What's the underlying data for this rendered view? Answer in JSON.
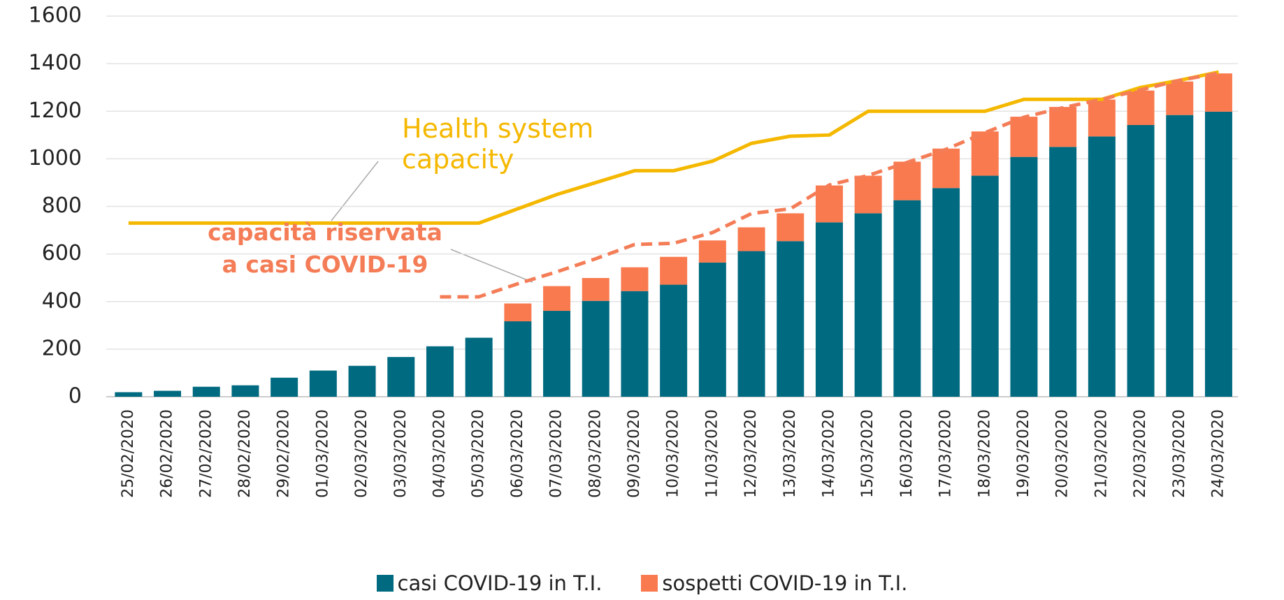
{
  "chart_data": {
    "type": "bar",
    "stacked": true,
    "categories": [
      "25/02/2020",
      "26/02/2020",
      "27/02/2020",
      "28/02/2020",
      "29/02/2020",
      "01/03/2020",
      "02/03/2020",
      "03/03/2020",
      "04/03/2020",
      "05/03/2020",
      "06/03/2020",
      "07/03/2020",
      "08/03/2020",
      "09/03/2020",
      "10/03/2020",
      "11/03/2020",
      "12/03/2020",
      "13/03/2020",
      "14/03/2020",
      "15/03/2020",
      "16/03/2020",
      "17/03/2020",
      "18/03/2020",
      "19/03/2020",
      "20/03/2020",
      "21/03/2020",
      "22/03/2020",
      "23/03/2020",
      "24/03/2020"
    ],
    "series": [
      {
        "name": "casi COVID-19 in T.I.",
        "color": "#006a80",
        "values": [
          19,
          25,
          42,
          48,
          80,
          110,
          130,
          167,
          212,
          248,
          317,
          361,
          403,
          444,
          471,
          564,
          612,
          654,
          733,
          771,
          826,
          877,
          929,
          1008,
          1050,
          1094,
          1142,
          1184,
          1198
        ]
      },
      {
        "name": "sospetti COVID-19 in T.I.",
        "color": "#f97a4f",
        "values": [
          0,
          0,
          0,
          0,
          0,
          0,
          0,
          0,
          0,
          0,
          75,
          104,
          96,
          100,
          117,
          93,
          100,
          117,
          155,
          158,
          162,
          166,
          186,
          169,
          168,
          155,
          145,
          141,
          161
        ]
      }
    ],
    "lines": [
      {
        "label": "Health system capacity",
        "color": "#f5b800",
        "dashed": false,
        "values": [
          730,
          730,
          730,
          730,
          730,
          730,
          730,
          730,
          730,
          730,
          790,
          850,
          900,
          950,
          950,
          990,
          1065,
          1095,
          1100,
          1200,
          1200,
          1200,
          1200,
          1250,
          1250,
          1250,
          1300,
          1330,
          1365
        ]
      },
      {
        "label": "capacità riservata a casi COVID-19",
        "color": "#f47d57",
        "dashed": true,
        "values": [
          null,
          null,
          null,
          null,
          null,
          null,
          null,
          null,
          420,
          420,
          475,
          525,
          580,
          640,
          645,
          690,
          770,
          790,
          890,
          930,
          985,
          1040,
          1110,
          1175,
          1215,
          1250,
          1290,
          1330,
          1360
        ]
      }
    ],
    "ylim": [
      0,
      1600
    ],
    "yticks": [
      0,
      200,
      400,
      600,
      800,
      1000,
      1200,
      1400,
      1600
    ],
    "grid": true
  }
}
